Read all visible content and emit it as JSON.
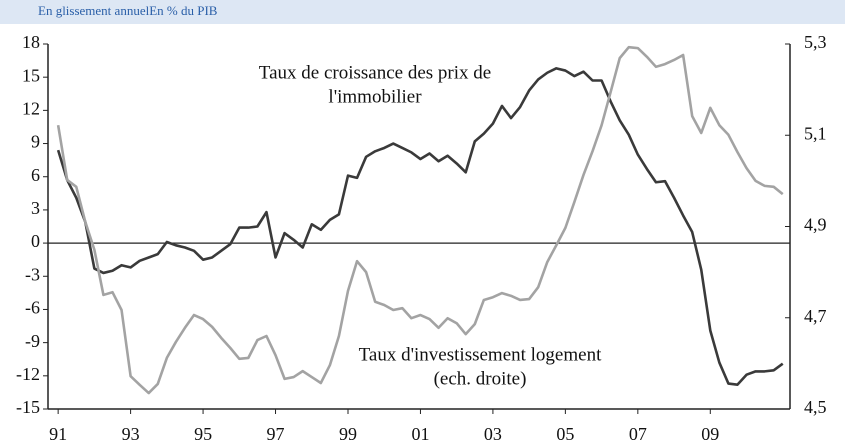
{
  "chart_data": {
    "type": "line",
    "title": "En glissement annuelEn % du PIB",
    "annotations": [
      [
        "Taux de croissance des prix de",
        "l'immobilier"
      ],
      [
        "Taux d'investissement logement",
        "(ech. droite)"
      ]
    ],
    "x": [
      1991,
      1991.25,
      1991.5,
      1991.75,
      1992,
      1992.25,
      1992.5,
      1992.75,
      1993,
      1993.25,
      1993.5,
      1993.75,
      1994,
      1994.25,
      1994.5,
      1994.75,
      1995,
      1995.25,
      1995.5,
      1995.75,
      1996,
      1996.25,
      1996.5,
      1996.75,
      1997,
      1997.25,
      1997.5,
      1997.75,
      1998,
      1998.25,
      1998.5,
      1998.75,
      1999,
      1999.25,
      1999.5,
      1999.75,
      2000,
      2000.25,
      2000.5,
      2000.75,
      2001,
      2001.25,
      2001.5,
      2001.75,
      2002,
      2002.25,
      2002.5,
      2002.75,
      2003,
      2003.25,
      2003.5,
      2003.75,
      2004,
      2004.25,
      2004.5,
      2004.75,
      2005,
      2005.25,
      2005.5,
      2005.75,
      2006,
      2006.25,
      2006.5,
      2006.75,
      2007,
      2007.25,
      2007.5,
      2007.75,
      2008,
      2008.25,
      2008.5,
      2008.75,
      2009,
      2009.25,
      2009.5,
      2009.75,
      2010,
      2010.25,
      2010.5,
      2010.75,
      2011
    ],
    "series": [
      {
        "name": "Taux de croissance des prix de l'immobilier",
        "color": "#3a3a3a",
        "axis": "y",
        "values": [
          8.4,
          5.7,
          4.1,
          1.9,
          -2.3,
          -2.7,
          -2.5,
          -2.0,
          -2.2,
          -1.6,
          -1.3,
          -1.0,
          0.1,
          -0.2,
          -0.4,
          -0.7,
          -1.5,
          -1.3,
          -0.7,
          -0.1,
          1.4,
          1.4,
          1.5,
          2.8,
          -1.3,
          0.9,
          0.3,
          -0.4,
          1.7,
          1.2,
          2.1,
          2.6,
          6.1,
          5.9,
          7.8,
          8.3,
          8.6,
          9.0,
          8.6,
          8.2,
          7.6,
          8.1,
          7.4,
          7.9,
          7.2,
          6.4,
          9.2,
          9.9,
          10.8,
          12.4,
          11.3,
          12.3,
          13.8,
          14.8,
          15.4,
          15.8,
          15.6,
          15.1,
          15.5,
          14.7,
          14.7,
          12.8,
          11.1,
          9.8,
          8.0,
          6.7,
          5.5,
          5.6,
          4.1,
          2.5,
          1.0,
          -2.4,
          -7.9,
          -10.8,
          -12.7,
          -12.8,
          -11.9,
          -11.6,
          -11.6,
          -11.5,
          -10.9
        ]
      },
      {
        "name": "Taux d'investissement logement",
        "color": "#a3a3a3",
        "axis": "y2",
        "values": [
          5.122,
          5.002,
          4.987,
          4.91,
          4.849,
          4.75,
          4.756,
          4.717,
          4.572,
          4.553,
          4.535,
          4.555,
          4.612,
          4.647,
          4.678,
          4.706,
          4.697,
          4.68,
          4.656,
          4.634,
          4.61,
          4.612,
          4.651,
          4.66,
          4.618,
          4.566,
          4.57,
          4.583,
          4.57,
          4.557,
          4.596,
          4.66,
          4.759,
          4.824,
          4.8,
          4.735,
          4.728,
          4.717,
          4.721,
          4.699,
          4.706,
          4.697,
          4.678,
          4.699,
          4.688,
          4.664,
          4.686,
          4.739,
          4.745,
          4.754,
          4.748,
          4.739,
          4.741,
          4.767,
          4.822,
          4.859,
          4.897,
          4.954,
          5.013,
          5.065,
          5.122,
          5.195,
          5.269,
          5.293,
          5.291,
          5.272,
          5.25,
          5.256,
          5.265,
          5.276,
          5.142,
          5.105,
          5.16,
          5.122,
          5.101,
          5.063,
          5.028,
          5.0,
          4.989,
          4.987,
          4.971
        ]
      }
    ],
    "xlim": [
      1990.72,
      2011.2
    ],
    "xticks": [
      {
        "value": 1991,
        "label": "91"
      },
      {
        "value": 1993,
        "label": "93"
      },
      {
        "value": 1995,
        "label": "95"
      },
      {
        "value": 1997,
        "label": "97"
      },
      {
        "value": 1999,
        "label": "99"
      },
      {
        "value": 2001,
        "label": "01"
      },
      {
        "value": 2003,
        "label": "03"
      },
      {
        "value": 2005,
        "label": "05"
      },
      {
        "value": 2007,
        "label": "07"
      },
      {
        "value": 2009,
        "label": "09"
      }
    ],
    "ylim": [
      -15,
      18
    ],
    "yticks": [
      -15,
      -12,
      -9,
      -6,
      -3,
      0,
      3,
      6,
      9,
      12,
      15,
      18
    ],
    "y2lim": [
      4.5,
      5.3
    ],
    "y2ticks": [
      {
        "value": 4.5,
        "label": "4,5"
      },
      {
        "value": 4.7,
        "label": "4,7"
      },
      {
        "value": 4.9,
        "label": "4,9"
      },
      {
        "value": 5.1,
        "label": "5,1"
      },
      {
        "value": 5.3,
        "label": "5,3"
      }
    ]
  }
}
